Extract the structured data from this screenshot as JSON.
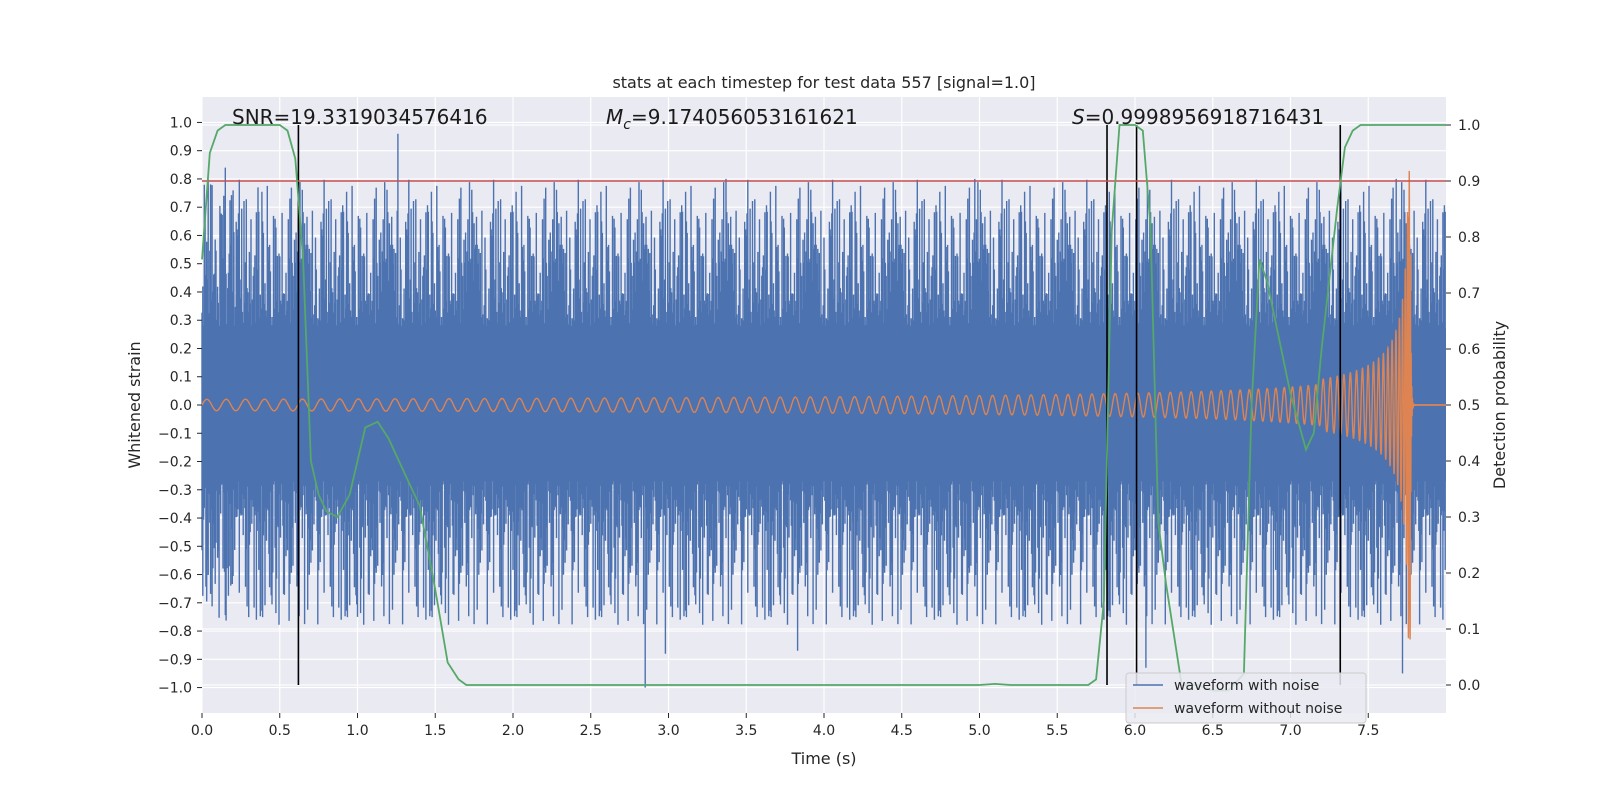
{
  "chart_data": {
    "type": "line",
    "title": "stats at each timestep for test data 557 [signal=1.0]",
    "xlabel": "Time (s)",
    "ylabel": "Whitened strain",
    "y2label": "Detection probability",
    "xlim": [
      0.0,
      8.0
    ],
    "ylim": [
      -1.09,
      1.09
    ],
    "y2lim": [
      -0.05,
      1.05
    ],
    "x_ticks": [
      0.0,
      0.5,
      1.0,
      1.5,
      2.0,
      2.5,
      3.0,
      3.5,
      4.0,
      4.5,
      5.0,
      5.5,
      6.0,
      6.5,
      7.0,
      7.5
    ],
    "x_tick_labels": [
      "0.0",
      "0.5",
      "1.0",
      "1.5",
      "2.0",
      "2.5",
      "3.0",
      "3.5",
      "4.0",
      "4.5",
      "5.0",
      "5.5",
      "6.0",
      "6.5",
      "7.0",
      "7.5"
    ],
    "y_ticks": [
      1.0,
      0.9,
      0.8,
      0.7,
      0.6,
      0.5,
      0.4,
      0.3,
      0.2,
      0.1,
      0.0,
      -0.1,
      -0.2,
      -0.3,
      -0.4,
      -0.5,
      -0.6,
      -0.7,
      -0.8,
      -0.9,
      -1.0
    ],
    "y_tick_labels": [
      "1.0",
      "0.9",
      "0.8",
      "0.7",
      "0.6",
      "0.5",
      "0.4",
      "0.3",
      "0.2",
      "0.1",
      "0.0",
      "−0.1",
      "−0.2",
      "−0.3",
      "−0.4",
      "−0.5",
      "−0.6",
      "−0.7",
      "−0.8",
      "−0.9",
      "−1.0"
    ],
    "y2_ticks": [
      1.0,
      0.9,
      0.8,
      0.7,
      0.6,
      0.5,
      0.4,
      0.3,
      0.2,
      0.1,
      0.0
    ],
    "y2_tick_labels": [
      "1.0",
      "0.9",
      "0.8",
      "0.7",
      "0.6",
      "0.5",
      "0.4",
      "0.3",
      "0.2",
      "0.1",
      "0.0"
    ],
    "annotations": {
      "snr": "SNR=19.3319034576416",
      "mc_symbol": "M",
      "mc_sub": "c",
      "mc_value": "=9.174056053161621",
      "s_symbol": "S",
      "s_value": "=0.9998956918716431"
    },
    "threshold": {
      "value": 0.9,
      "axis": "y2",
      "color": "#c44e52"
    },
    "vlines": [
      0.62,
      5.82,
      6.01,
      7.32
    ],
    "series": [
      {
        "name": "waveform with noise",
        "color": "#4c72b0",
        "description": "noisy whitened strain, roughly within -1.0 to 0.96",
        "spikes_max": [
          {
            "t": 0.15,
            "v": 0.84
          },
          {
            "t": 0.36,
            "v": 0.77
          },
          {
            "t": 1.26,
            "v": 0.96
          },
          {
            "t": 3.37,
            "v": 0.8
          },
          {
            "t": 4.97,
            "v": 0.8
          },
          {
            "t": 7.68,
            "v": 0.8
          }
        ],
        "spikes_min": [
          {
            "t": 1.0,
            "v": -0.75
          },
          {
            "t": 2.85,
            "v": -1.0
          },
          {
            "t": 2.98,
            "v": -0.88
          },
          {
            "t": 3.83,
            "v": -0.87
          },
          {
            "t": 6.07,
            "v": -0.93
          },
          {
            "t": 7.72,
            "v": -0.95
          }
        ]
      },
      {
        "name": "waveform without noise",
        "color": "#dd8452",
        "description": "chirp signal: amplitude ~0.02 growing to ~0.83 at merger near t=7.77 s, then ringdown to 0"
      },
      {
        "name": "detection probability",
        "color": "#55a868",
        "axis": "y2",
        "x": [
          0.0,
          0.05,
          0.1,
          0.15,
          0.2,
          0.3,
          0.4,
          0.5,
          0.55,
          0.6,
          0.65,
          0.7,
          0.75,
          0.8,
          0.87,
          0.95,
          1.05,
          1.13,
          1.2,
          1.3,
          1.4,
          1.5,
          1.58,
          1.65,
          1.7,
          1.8,
          2.0,
          3.0,
          4.0,
          4.8,
          5.0,
          5.1,
          5.2,
          5.6,
          5.7,
          5.75,
          5.8,
          5.85,
          5.9,
          6.0,
          6.05,
          6.1,
          6.15,
          6.2,
          6.3,
          6.4,
          6.5,
          6.6,
          6.7,
          6.75,
          6.8,
          6.85,
          7.0,
          7.1,
          7.15,
          7.2,
          7.3,
          7.35,
          7.4,
          7.45,
          7.5,
          7.6,
          7.7,
          7.8,
          8.0
        ],
        "values": [
          0.76,
          0.95,
          0.99,
          1.0,
          1.0,
          1.0,
          1.0,
          1.0,
          0.99,
          0.94,
          0.76,
          0.4,
          0.34,
          0.31,
          0.3,
          0.34,
          0.46,
          0.47,
          0.44,
          0.38,
          0.32,
          0.17,
          0.04,
          0.01,
          0.0,
          0.0,
          0.0,
          0.0,
          0.0,
          0.0,
          0.0,
          0.002,
          0.0,
          0.0,
          0.0,
          0.01,
          0.15,
          0.81,
          1.0,
          1.0,
          0.99,
          0.82,
          0.29,
          0.18,
          0.0,
          0.0,
          -0.01,
          -0.01,
          0.02,
          0.5,
          0.76,
          0.72,
          0.52,
          0.42,
          0.45,
          0.6,
          0.85,
          0.96,
          0.99,
          1.0,
          1.0,
          1.0,
          1.0,
          1.0,
          1.0
        ]
      }
    ],
    "legend": {
      "placement": "bottom-right",
      "entries": [
        {
          "label": "waveform with noise",
          "color": "#4c72b0"
        },
        {
          "label": "waveform without noise",
          "color": "#dd8452"
        }
      ]
    }
  }
}
